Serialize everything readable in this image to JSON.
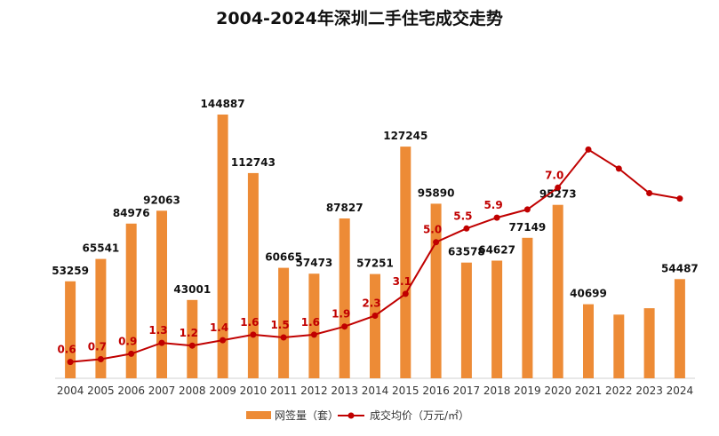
{
  "title": "2004-2024年深圳二手住宅成交走势",
  "colors": {
    "bar": "#ED8B36",
    "line": "#C00000",
    "axis": "#d0d0d0"
  },
  "legend": {
    "bar_label": "网签量（套）",
    "line_label": "成交均价（万元/㎡）"
  },
  "chart_data": {
    "type": "bar",
    "title": "2004-2024年深圳二手住宅成交走势",
    "categories": [
      "2004",
      "2005",
      "2006",
      "2007",
      "2008",
      "2009",
      "2010",
      "2011",
      "2012",
      "2013",
      "2014",
      "2015",
      "2016",
      "2017",
      "2018",
      "2019",
      "2020",
      "2021",
      "2022",
      "2023",
      "2024"
    ],
    "series": [
      {
        "name": "网签量（套）",
        "type": "bar",
        "values": [
          53259,
          65541,
          84976,
          92063,
          43001,
          144887,
          112743,
          60665,
          57473,
          87827,
          57251,
          127245,
          95890,
          63578,
          64627,
          77149,
          95273,
          40699,
          35000,
          38500,
          54487
        ],
        "labels": [
          "53259",
          "65541",
          "84976",
          "92063",
          "43001",
          "144887",
          "112743",
          "60665",
          "57473",
          "87827",
          "57251",
          "127245",
          "95890",
          "63578",
          "64627",
          "77149",
          "95273",
          "40699",
          "",
          "",
          "54487"
        ]
      },
      {
        "name": "成交均价（万元/㎡）",
        "type": "line",
        "values": [
          0.6,
          0.7,
          0.9,
          1.3,
          1.2,
          1.4,
          1.6,
          1.5,
          1.6,
          1.9,
          2.3,
          3.1,
          5.0,
          5.5,
          5.9,
          6.2,
          7.0,
          8.4,
          7.7,
          6.8,
          6.6
        ],
        "labels": [
          "0.6",
          "0.7",
          "0.9",
          "1.3",
          "1.2",
          "1.4",
          "1.6",
          "1.5",
          "1.6",
          "1.9",
          "2.3",
          "3.1",
          "5.0",
          "5.5",
          "5.9",
          "",
          "7.0",
          "",
          "",
          "",
          ""
        ]
      }
    ],
    "y_bar_range": [
      0,
      160000
    ],
    "y_line_range": [
      0,
      9.0
    ],
    "grid": false,
    "legend_position": "bottom-center"
  }
}
